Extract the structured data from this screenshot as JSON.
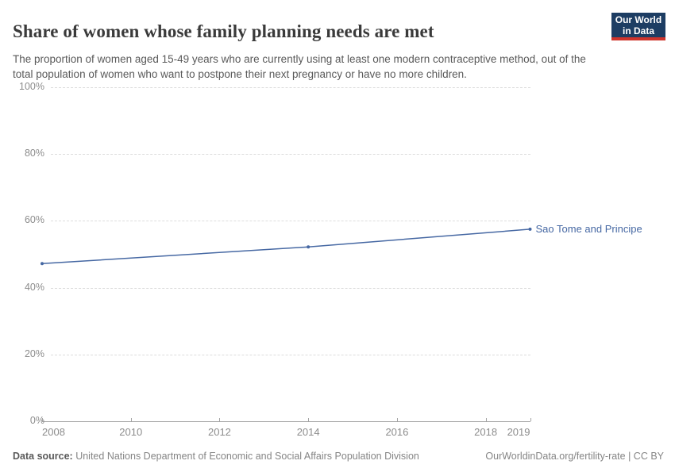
{
  "header": {
    "title": "Share of women whose family planning needs are met",
    "subtitle": "The proportion of women aged 15-49 years who are currently using at least one modern contraceptive method, out of the total population of women who want to postpone their next pregnancy or have no more children.",
    "logo": {
      "line1": "Our World",
      "line2": "in Data",
      "bg_color": "#1d3d63",
      "accent_color": "#cf342c"
    }
  },
  "chart_data": {
    "type": "line",
    "title": "Share of women whose family planning needs are met",
    "series": [
      {
        "name": "Sao Tome and Principe",
        "color": "#4668a3",
        "x": [
          2008,
          2014,
          2019
        ],
        "values": [
          47.2,
          52.2,
          57.5
        ]
      }
    ],
    "xticks": [
      2008,
      2010,
      2012,
      2014,
      2016,
      2018,
      2019
    ],
    "yticks": [
      0,
      20,
      40,
      60,
      80,
      100
    ],
    "ytick_suffix": "%",
    "xlim": [
      2008,
      2019
    ],
    "ylim": [
      0,
      100
    ],
    "grid": "horizontal-dashed",
    "legend_position": "end-of-line-label"
  },
  "footer": {
    "source_label": "Data source:",
    "source_text": " United Nations Department of Economic and Social Affairs Population Division",
    "attribution": "OurWorldinData.org/fertility-rate | CC BY"
  }
}
